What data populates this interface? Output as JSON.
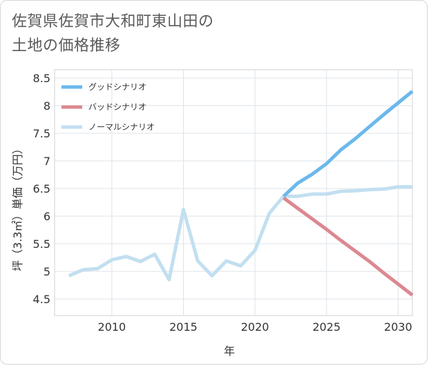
{
  "title_lines": [
    "佐賀県佐賀市大和町東山田の",
    "土地の価格推移"
  ],
  "chart_data": {
    "type": "line",
    "xlabel": "年",
    "ylabel": "坪（3.3㎡）単価（万円）",
    "xlim": [
      2006,
      2031
    ],
    "ylim": [
      4.2,
      8.65
    ],
    "x_ticks": [
      2010,
      2015,
      2020,
      2025,
      2030
    ],
    "y_ticks": [
      4.5,
      5,
      5.5,
      6,
      6.5,
      7,
      7.5,
      8,
      8.5
    ],
    "legend_position": "top-left",
    "series": [
      {
        "name": "グッドシナリオ",
        "color": "#6bb8ec",
        "x": [
          2022,
          2023,
          2024,
          2025,
          2026,
          2027,
          2028,
          2029,
          2030,
          2031
        ],
        "values": [
          6.36,
          6.6,
          6.76,
          6.95,
          7.2,
          7.4,
          7.62,
          7.84,
          8.05,
          8.26
        ]
      },
      {
        "name": "バッドシナリオ",
        "color": "#dc8890",
        "x": [
          2022,
          2023,
          2024,
          2025,
          2026,
          2027,
          2028,
          2029,
          2030,
          2031
        ],
        "values": [
          6.33,
          6.14,
          5.95,
          5.76,
          5.56,
          5.37,
          5.18,
          4.97,
          4.77,
          4.57
        ]
      },
      {
        "name": "ノーマルシナリオ",
        "color": "#c2dff0",
        "x": [
          2007,
          2008,
          2009,
          2010,
          2011,
          2012,
          2013,
          2014,
          2015,
          2016,
          2017,
          2018,
          2019,
          2020,
          2021,
          2022,
          2023,
          2024,
          2025,
          2026,
          2027,
          2028,
          2029,
          2030,
          2031
        ],
        "values": [
          4.92,
          5.03,
          5.05,
          5.21,
          5.27,
          5.18,
          5.31,
          4.85,
          6.12,
          5.19,
          4.92,
          5.19,
          5.1,
          5.38,
          6.05,
          6.36,
          6.36,
          6.4,
          6.4,
          6.45,
          6.46,
          6.48,
          6.49,
          6.53,
          6.53
        ]
      }
    ]
  }
}
